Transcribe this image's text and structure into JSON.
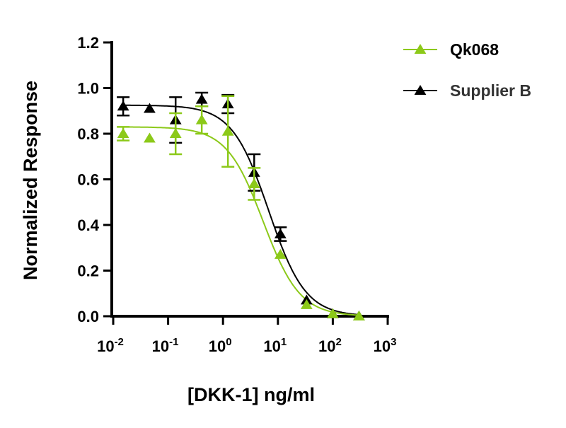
{
  "chart_data": {
    "type": "scatter",
    "title": "",
    "xlabel": "[DKK-1] ng/ml",
    "ylabel": "Normalized Response",
    "xscale": "log",
    "xlim": [
      0.01,
      1000
    ],
    "ylim": [
      0,
      1.2
    ],
    "xticks": [
      {
        "base": "10",
        "exp": "-2"
      },
      {
        "base": "10",
        "exp": "-1"
      },
      {
        "base": "10",
        "exp": "0"
      },
      {
        "base": "10",
        "exp": "1"
      },
      {
        "base": "10",
        "exp": "2"
      },
      {
        "base": "10",
        "exp": "3"
      }
    ],
    "yticks": [
      "0.0",
      "0.2",
      "0.4",
      "0.6",
      "0.8",
      "1.0",
      "1.2"
    ],
    "legend_position": "top-right",
    "series": [
      {
        "name": "Qk068",
        "color": "#8cc919",
        "x": [
          0.0152,
          0.046,
          0.137,
          0.41,
          1.23,
          3.7,
          11.1,
          33.3,
          100,
          300
        ],
        "y": [
          0.8,
          0.78,
          0.8,
          0.86,
          0.81,
          0.58,
          0.27,
          0.05,
          0.01,
          0.0
        ],
        "err": [
          0.03,
          0,
          0.09,
          0.06,
          0.155,
          0.07,
          0,
          0,
          0,
          0
        ],
        "fit": {
          "top": 0.83,
          "bottom": 0.0,
          "ec50": 5.4,
          "hill": 1.3
        }
      },
      {
        "name": "Supplier B",
        "color": "#000000",
        "x": [
          0.0152,
          0.046,
          0.137,
          0.41,
          1.23,
          3.7,
          11.1,
          33.3,
          100,
          300
        ],
        "y": [
          0.92,
          0.91,
          0.86,
          0.95,
          0.93,
          0.63,
          0.36,
          0.07,
          0.01,
          0.0
        ],
        "err": [
          0.04,
          0,
          0.1,
          0.03,
          0.04,
          0.08,
          0.03,
          0,
          0,
          0
        ],
        "fit": {
          "top": 0.925,
          "bottom": 0.0,
          "ec50": 6.8,
          "hill": 1.3
        }
      }
    ]
  }
}
